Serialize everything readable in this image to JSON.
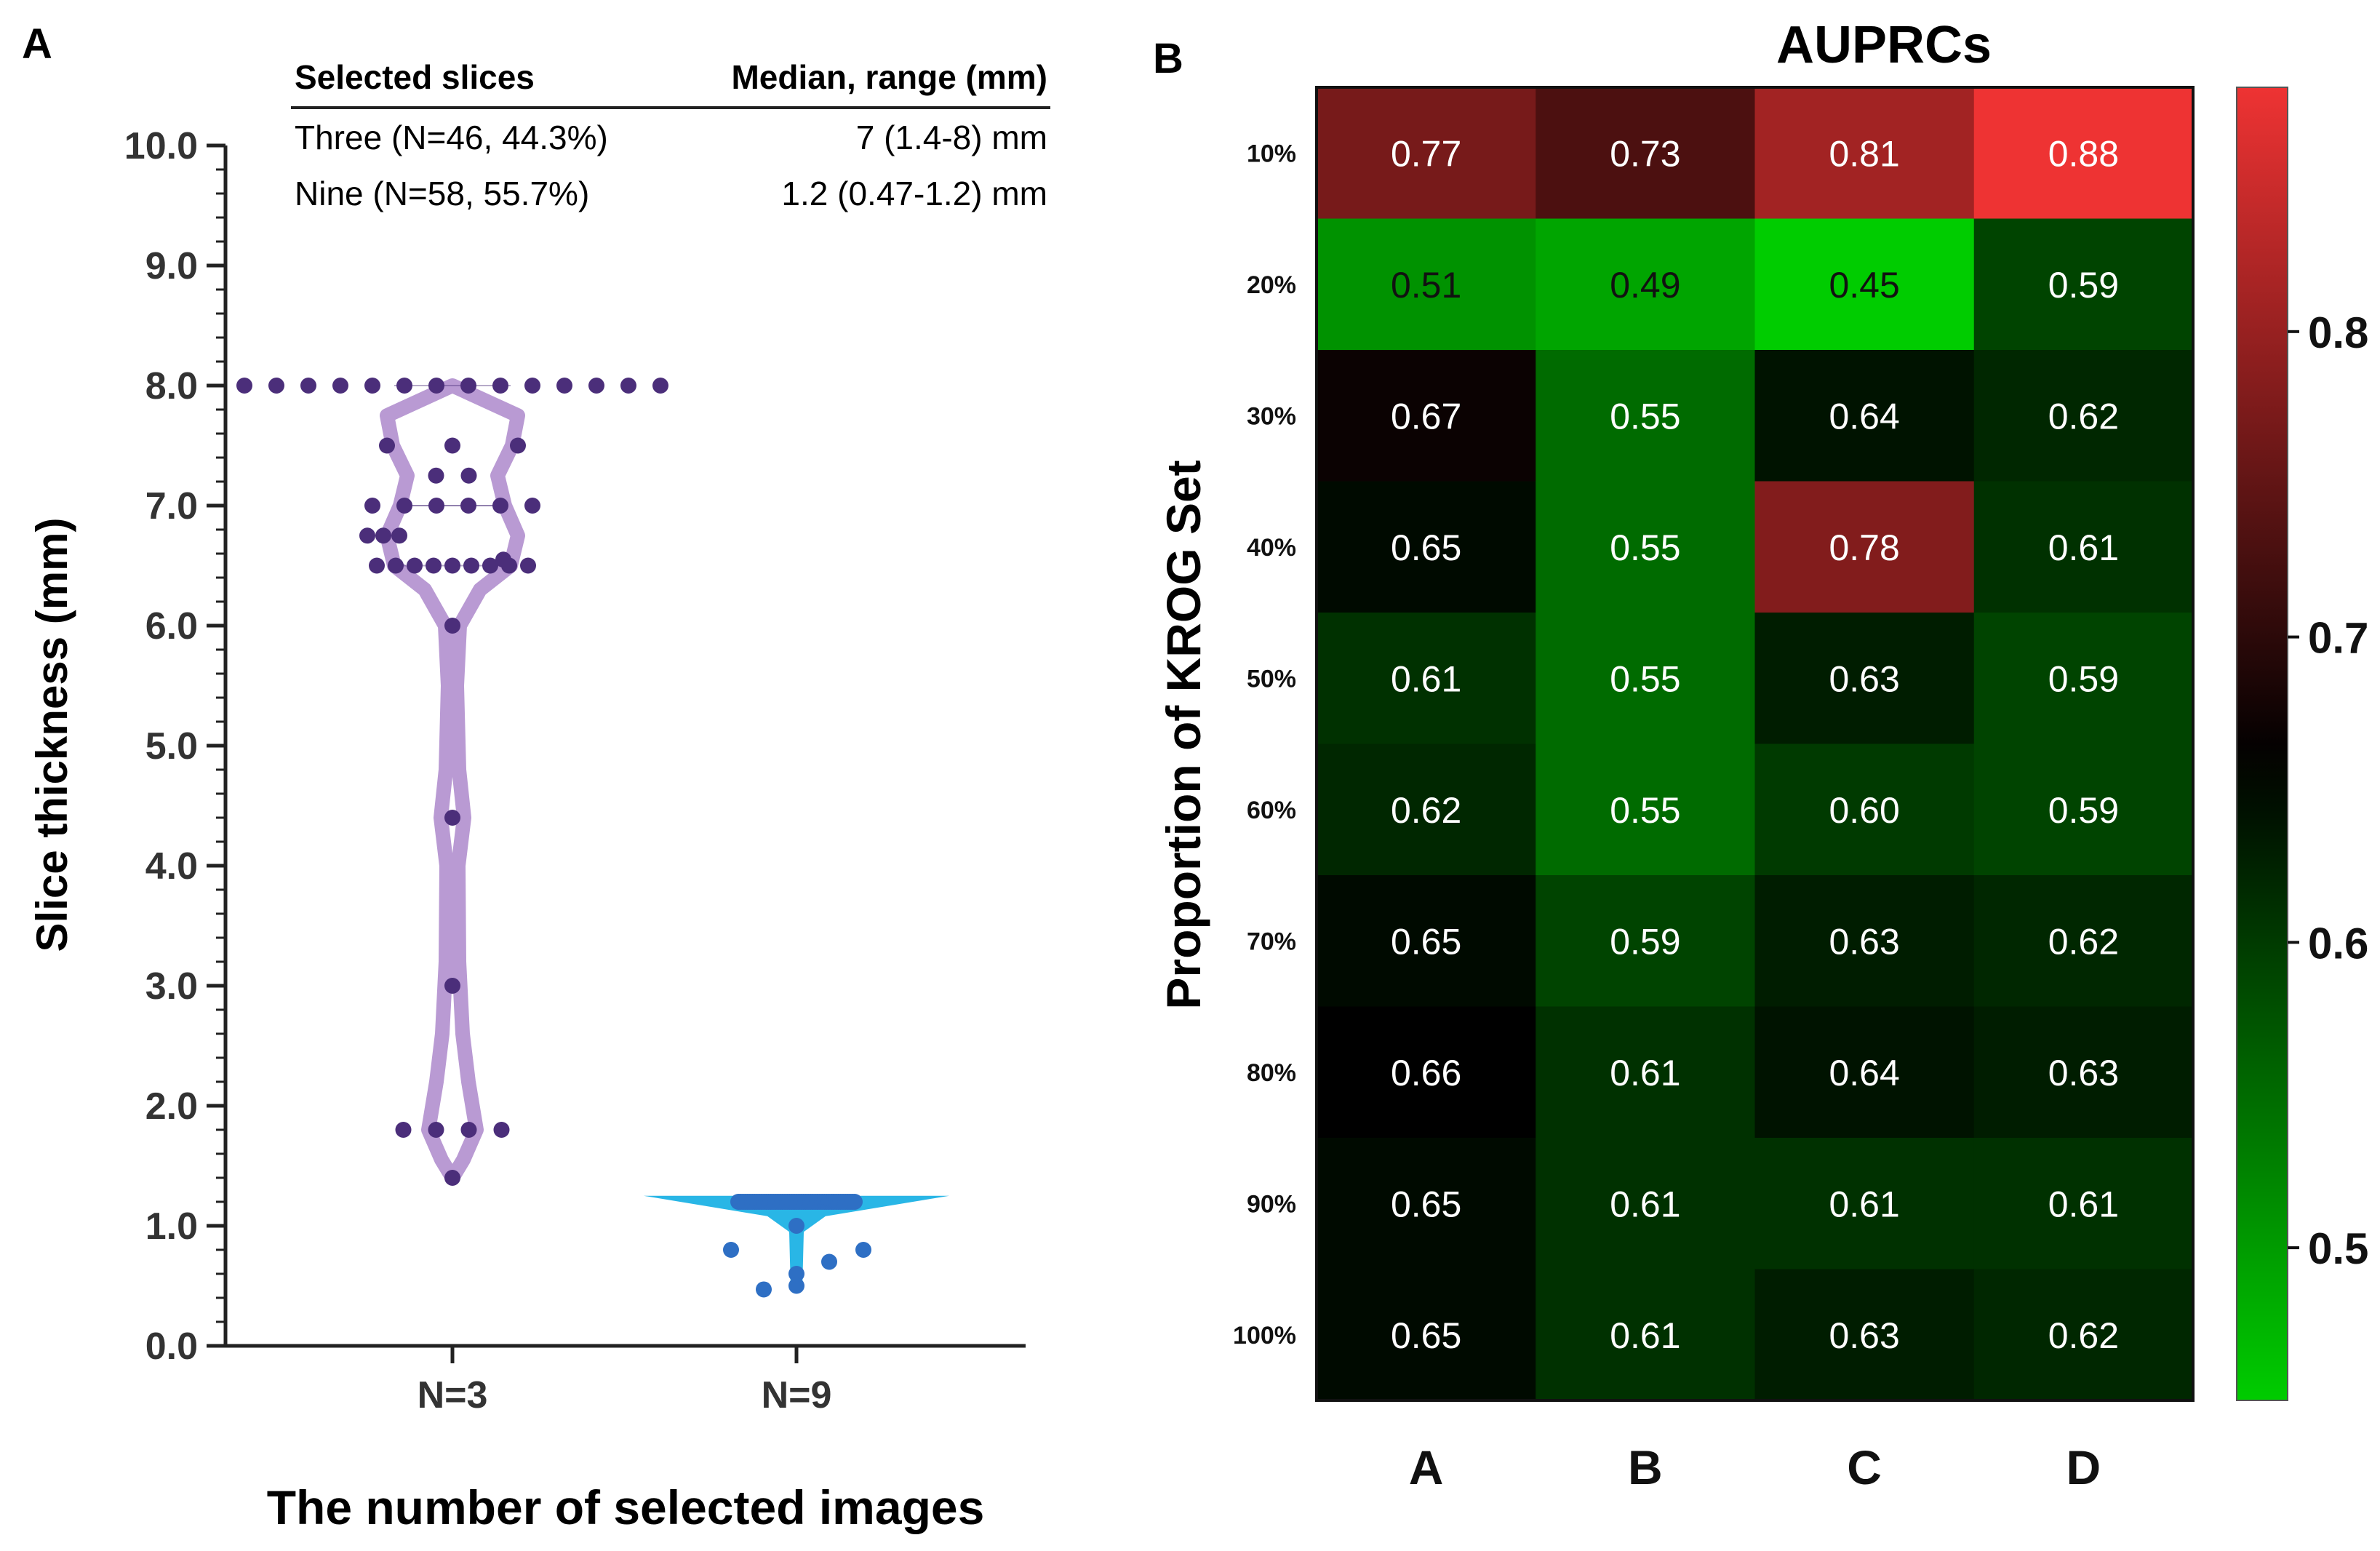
{
  "panels": {
    "a_label": "A",
    "b_label": "B"
  },
  "table": {
    "headers": [
      "Selected slices",
      "Median, range (mm)"
    ],
    "rows": [
      [
        "Three (N=46, 44.3%)",
        "7 (1.4-8) mm"
      ],
      [
        "Nine (N=58, 55.7%)",
        "1.2 (0.47-1.2) mm"
      ]
    ]
  },
  "colors": {
    "violin_three": "#b99ad3",
    "dots_three": "#4b2e7a",
    "violin_nine": "#29b6e6",
    "dots_nine": "#2e6fc4",
    "heat_low": "#00cc00",
    "heat_mid": "#000000",
    "heat_high": "#ee3333"
  },
  "chart_data": [
    {
      "type": "scatter",
      "subtype": "violin-dot",
      "title": "",
      "xlabel": "The number of selected images",
      "ylabel": "Slice thickness (mm)",
      "ylim": [
        0,
        10
      ],
      "yticks": [
        "0.0",
        "1.0",
        "2.0",
        "3.0",
        "4.0",
        "5.0",
        "6.0",
        "7.0",
        "8.0",
        "9.0",
        "10.0"
      ],
      "categories": [
        "N=3",
        "N=9"
      ],
      "series": [
        {
          "name": "Three",
          "values": [
            8,
            8,
            8,
            8,
            8,
            8,
            8,
            8,
            8,
            8,
            8,
            8,
            8,
            8,
            7.5,
            7.5,
            7.5,
            7.25,
            7.25,
            7,
            7,
            7,
            7,
            7,
            7,
            6.75,
            6.75,
            6.75,
            6.55,
            6.5,
            6.5,
            6.5,
            6.5,
            6.5,
            6.5,
            6.5,
            6.5,
            6.5,
            6,
            4.4,
            3,
            1.8,
            1.8,
            1.8,
            1.8,
            1.4
          ],
          "median": 7,
          "range": [
            1.4,
            8
          ]
        },
        {
          "name": "Nine",
          "values": [
            1.2,
            1.2,
            1.2,
            1.2,
            1.2,
            1.2,
            1.2,
            1.2,
            1.2,
            1.2,
            1.2,
            1.2,
            1.2,
            1.2,
            1.2,
            1.2,
            1.2,
            1.2,
            1.2,
            1.2,
            1.2,
            1.2,
            1.2,
            1.2,
            1.2,
            1.2,
            1.2,
            1.2,
            1.2,
            1.2,
            1.2,
            1.2,
            1.2,
            1.2,
            1.2,
            1.2,
            1.2,
            1.2,
            1.2,
            1.2,
            1.2,
            1.2,
            1.2,
            1.2,
            1.2,
            1.2,
            1.2,
            1.2,
            1.2,
            1.2,
            1.2,
            1.0,
            0.8,
            0.8,
            0.7,
            0.6,
            0.5,
            0.47
          ],
          "median": 1.2,
          "range": [
            0.47,
            1.2
          ]
        }
      ]
    },
    {
      "type": "heatmap",
      "title": "AUPRCs",
      "xlabel": "",
      "ylabel": "Proportion of KROG Set",
      "x": [
        "A",
        "B",
        "C",
        "D"
      ],
      "y": [
        "10%",
        "20%",
        "30%",
        "40%",
        "50%",
        "60%",
        "70%",
        "80%",
        "90%",
        "100%"
      ],
      "values": [
        [
          0.77,
          0.73,
          0.81,
          0.88
        ],
        [
          0.51,
          0.49,
          0.45,
          0.59
        ],
        [
          0.67,
          0.55,
          0.64,
          0.62
        ],
        [
          0.65,
          0.55,
          0.78,
          0.61
        ],
        [
          0.61,
          0.55,
          0.63,
          0.59
        ],
        [
          0.62,
          0.55,
          0.6,
          0.59
        ],
        [
          0.65,
          0.59,
          0.63,
          0.62
        ],
        [
          0.66,
          0.61,
          0.64,
          0.63
        ],
        [
          0.65,
          0.61,
          0.61,
          0.61
        ],
        [
          0.65,
          0.61,
          0.63,
          0.62
        ]
      ],
      "labels": [
        [
          "0.77",
          "0.73",
          "0.81",
          "0.88"
        ],
        [
          "0.51",
          "0.49",
          "0.45",
          "0.59"
        ],
        [
          "0.67",
          "0.55",
          "0.64",
          "0.62"
        ],
        [
          "0.65",
          "0.55",
          "0.78",
          "0.61"
        ],
        [
          "0.61",
          "0.55",
          "0.63",
          "0.59"
        ],
        [
          "0.62",
          "0.55",
          "0.60",
          "0.59"
        ],
        [
          "0.65",
          "0.59",
          "0.63",
          "0.62"
        ],
        [
          "0.66",
          "0.61",
          "0.64",
          "0.63"
        ],
        [
          "0.65",
          "0.61",
          "0.61",
          "0.61"
        ],
        [
          "0.65",
          "0.61",
          "0.63",
          "0.62"
        ]
      ],
      "colorbar": {
        "range": [
          0.45,
          0.88
        ],
        "center": 0.66,
        "ticks": [
          0.5,
          0.6,
          0.7,
          0.8
        ],
        "tick_labels": [
          "0.5",
          "0.6",
          "0.7",
          "0.8"
        ]
      }
    }
  ]
}
